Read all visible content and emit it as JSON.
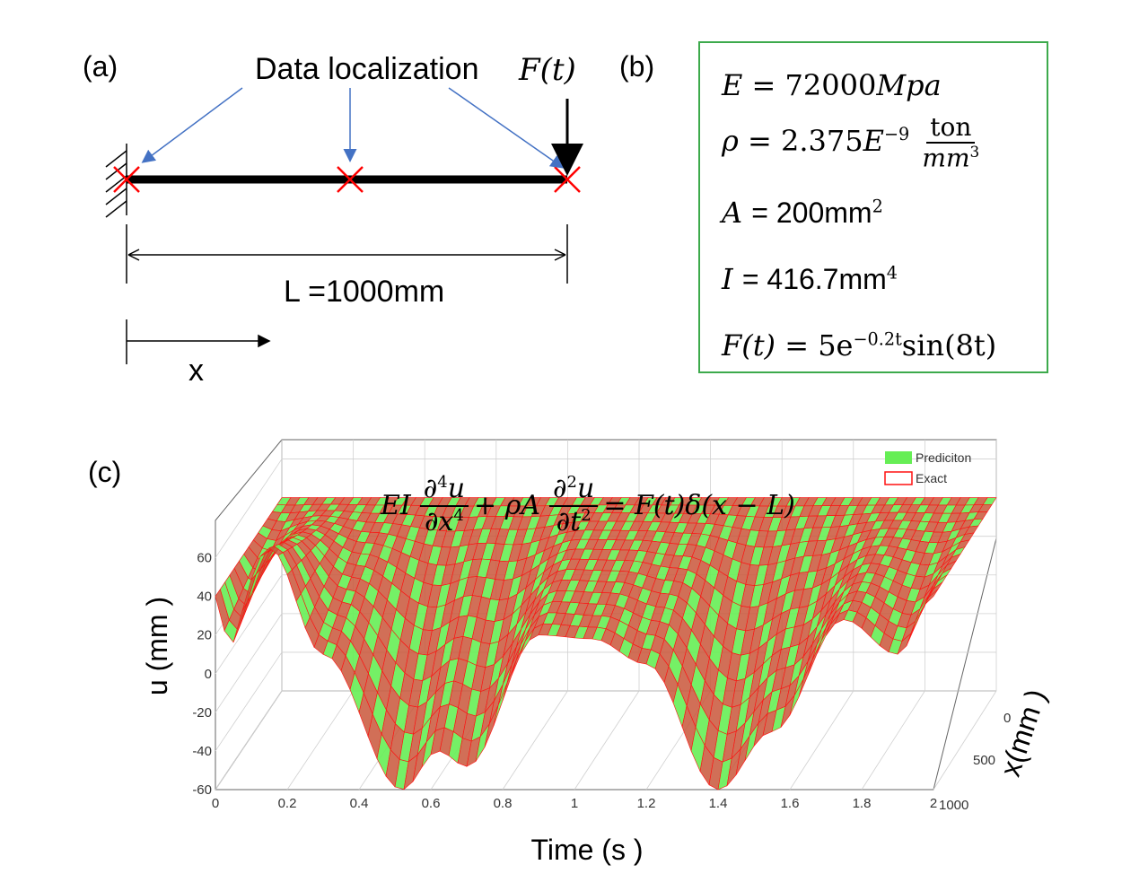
{
  "panel_a": {
    "tag": "(a)",
    "data_label": "Data localization",
    "force_label": "F(t)",
    "length_label": "L =1000mm",
    "x_label": "x"
  },
  "panel_b": {
    "tag": "(b)",
    "E": {
      "lhs": "E",
      "rhs": "= 72000",
      "unit": "Mpa"
    },
    "rho": {
      "lhs": "ρ",
      "rhs": "= 2.375",
      "exp_base": "E",
      "exp": "−9",
      "num": "ton",
      "den": "mm",
      "den_exp": "3"
    },
    "A": {
      "lhs": "A",
      "rhs": "= 200mm",
      "exp": "2"
    },
    "I": {
      "lhs": "I",
      "rhs": "= 416.7mm",
      "exp": "4"
    },
    "F": {
      "lhs": "F(t)",
      "rhs": "= 5e",
      "exp": "−0.2t",
      "tail": "sin(8t)"
    },
    "border_color": "#3daa4c"
  },
  "panel_c": {
    "tag": "(c)",
    "equation": {
      "ei": "EI",
      "num1": "∂",
      "num1_exp": "4",
      "num1_var": "u",
      "den1": "∂x",
      "den1_exp": "4",
      "mid": "+ ρA",
      "num2": "∂",
      "num2_exp": "2",
      "num2_var": "u",
      "den2": "∂t",
      "den2_exp": "2",
      "rhs": "= F(t)δ(x − L)"
    },
    "legend": {
      "prediction": "Prediciton",
      "exact": "Exact"
    },
    "colors": {
      "prediction": "#66ee55",
      "exact": "#ff1111"
    }
  },
  "chart_data": {
    "type": "surface",
    "xlabel": "Time (s )",
    "ylabel": "x(mm )",
    "zlabel": "u (mm )",
    "x_ticks": [
      "0",
      "0.2",
      "0.4",
      "0.6",
      "0.8",
      "1",
      "1.2",
      "1.4",
      "1.6",
      "1.8",
      "2"
    ],
    "y_ticks": [
      "0",
      "500",
      "1000"
    ],
    "z_ticks": [
      "60",
      "40",
      "20",
      "0",
      "-20",
      "-40",
      "-60"
    ],
    "xlim": [
      0,
      2
    ],
    "ylim": [
      0,
      1000
    ],
    "zlim": [
      -60,
      70
    ],
    "tip_displacement": {
      "t": [
        0,
        0.15,
        0.3,
        0.52,
        0.62,
        0.7,
        0.9,
        1.05,
        1.2,
        1.4,
        1.55,
        1.75,
        1.9,
        2.0
      ],
      "u": [
        0,
        65,
        10,
        -60,
        -40,
        -48,
        20,
        18,
        5,
        -60,
        -30,
        28,
        10,
        40
      ]
    },
    "series": [
      {
        "name": "Prediciton"
      },
      {
        "name": "Exact"
      }
    ],
    "grid": true,
    "legend_position": "top-right"
  }
}
